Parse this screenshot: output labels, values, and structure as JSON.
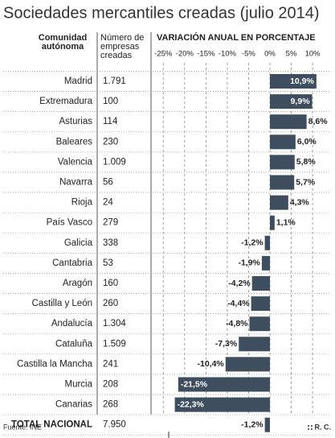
{
  "chart_data": {
    "type": "bar",
    "orientation": "horizontal",
    "title": "Sociedades mercantiles creadas (julio 2014)",
    "column_headers": [
      "Comunidad autónoma",
      "Número de empresas creadas",
      "VARIACIÓN ANUAL EN PORCENTAJE"
    ],
    "categories": [
      "Madrid",
      "Extremadura",
      "Asturias",
      "Baleares",
      "Valencia",
      "Navarra",
      "Rioja",
      "País Vasco",
      "Galicia",
      "Cantabria",
      "Aragón",
      "Castilla y León",
      "Andalucía",
      "Cataluña",
      "Castilla la Mancha",
      "Murcia",
      "Canarias",
      "TOTAL NACIONAL"
    ],
    "companies": [
      "1.791",
      "100",
      "114",
      "230",
      "1.009",
      "56",
      "24",
      "279",
      "338",
      "53",
      "160",
      "260",
      "1.304",
      "1.509",
      "241",
      "208",
      "268",
      "7.950"
    ],
    "values": [
      10.9,
      9.9,
      8.6,
      6.0,
      5.8,
      5.7,
      4.3,
      1.1,
      -1.2,
      -1.9,
      -4.2,
      -4.4,
      -4.8,
      -7.3,
      -10.4,
      -21.5,
      -22.3,
      -1.2
    ],
    "value_labels": [
      "10,9%",
      "9,9%",
      "8,6%",
      "6,0%",
      "5,8%",
      "5,7%",
      "4,3%",
      "1,1%",
      "-1,2%",
      "-1,9%",
      "-4,2%",
      "-4,4%",
      "-4,8%",
      "-7,3%",
      "-10,4%",
      "-21,5%",
      "-22,3%",
      "-1,2%"
    ],
    "xlim": [
      -27.5,
      13
    ],
    "xticks": [
      {
        "value": -25,
        "label": "-25%"
      },
      {
        "value": -20,
        "label": "-20%"
      },
      {
        "value": -15,
        "label": "-15%"
      },
      {
        "value": -10,
        "label": "-10%"
      },
      {
        "value": -5,
        "label": "-5%"
      },
      {
        "value": 0,
        "label": "0%"
      },
      {
        "value": 5,
        "label": "5%"
      },
      {
        "value": 10,
        "label": "10%"
      }
    ],
    "grid": true,
    "color": "#3e4e5e",
    "source": "Fuente: INE",
    "credit": "R. C."
  }
}
